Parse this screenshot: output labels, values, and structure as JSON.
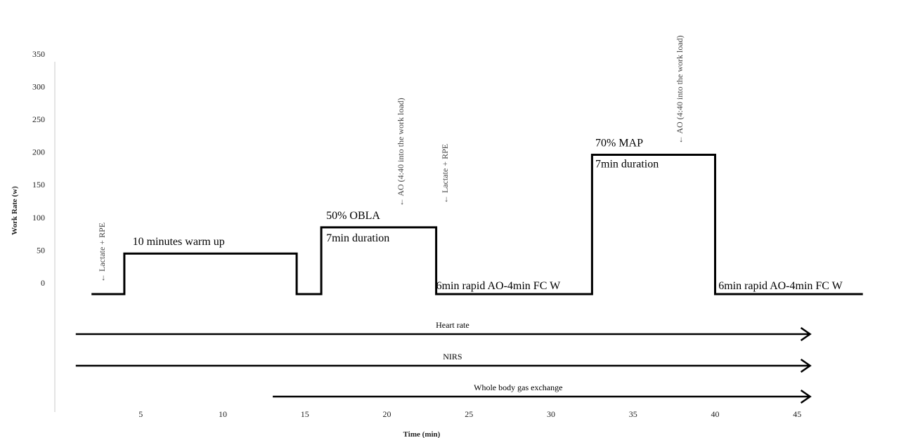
{
  "chart_data": {
    "type": "line",
    "title": "",
    "xlabel": "Time (min)",
    "ylabel": "Work Rate (w)",
    "xlim": [
      0,
      50
    ],
    "ylim": [
      0,
      350
    ],
    "x_ticks": [
      5,
      10,
      15,
      20,
      25,
      30,
      35,
      40,
      45
    ],
    "y_ticks": [
      0,
      50,
      100,
      150,
      200,
      250,
      300,
      350
    ],
    "grid": false,
    "series": [
      {
        "points": [
          [
            2,
            0
          ],
          [
            4,
            0
          ],
          [
            4,
            62
          ],
          [
            14.5,
            62
          ],
          [
            14.5,
            0
          ],
          [
            16,
            0
          ],
          [
            16,
            102
          ],
          [
            23,
            102
          ],
          [
            23,
            0
          ],
          [
            32.5,
            0
          ],
          [
            32.5,
            213
          ],
          [
            40,
            213
          ],
          [
            40,
            0
          ],
          [
            49,
            0
          ]
        ]
      }
    ],
    "phase_labels": [
      {
        "text": "10 minutes warm up",
        "x": 4.5,
        "y": 62
      },
      {
        "text": "50% OBLA",
        "x": 16.3,
        "y": 102
      },
      {
        "text": "7min duration",
        "x": 16.3,
        "y": 102
      },
      {
        "text": "6min rapid AO-4min FC W",
        "x": 23,
        "y": 0
      },
      {
        "text": "70% MAP",
        "x": 32.7,
        "y": 213
      },
      {
        "text": "7min duration",
        "x": 32.7,
        "y": 213
      },
      {
        "text": "6min rapid AO-4min FC W",
        "x": 40.2,
        "y": 0
      }
    ],
    "event_annotations": [
      {
        "text": "← Lactate + RPE",
        "x": 2.8
      },
      {
        "text": "← AO (4:40 into the work load)",
        "x": 21
      },
      {
        "text": "← Lactate + RPE",
        "x": 23.7
      },
      {
        "text": "← AO (4:40 into the work load)",
        "x": 38
      }
    ],
    "measurements": [
      {
        "name": "Heart rate",
        "start": 1,
        "end": 46
      },
      {
        "name": "NIRS",
        "start": 1,
        "end": 46
      },
      {
        "name": "Whole body gas exchange",
        "start": 13,
        "end": 46
      }
    ]
  }
}
